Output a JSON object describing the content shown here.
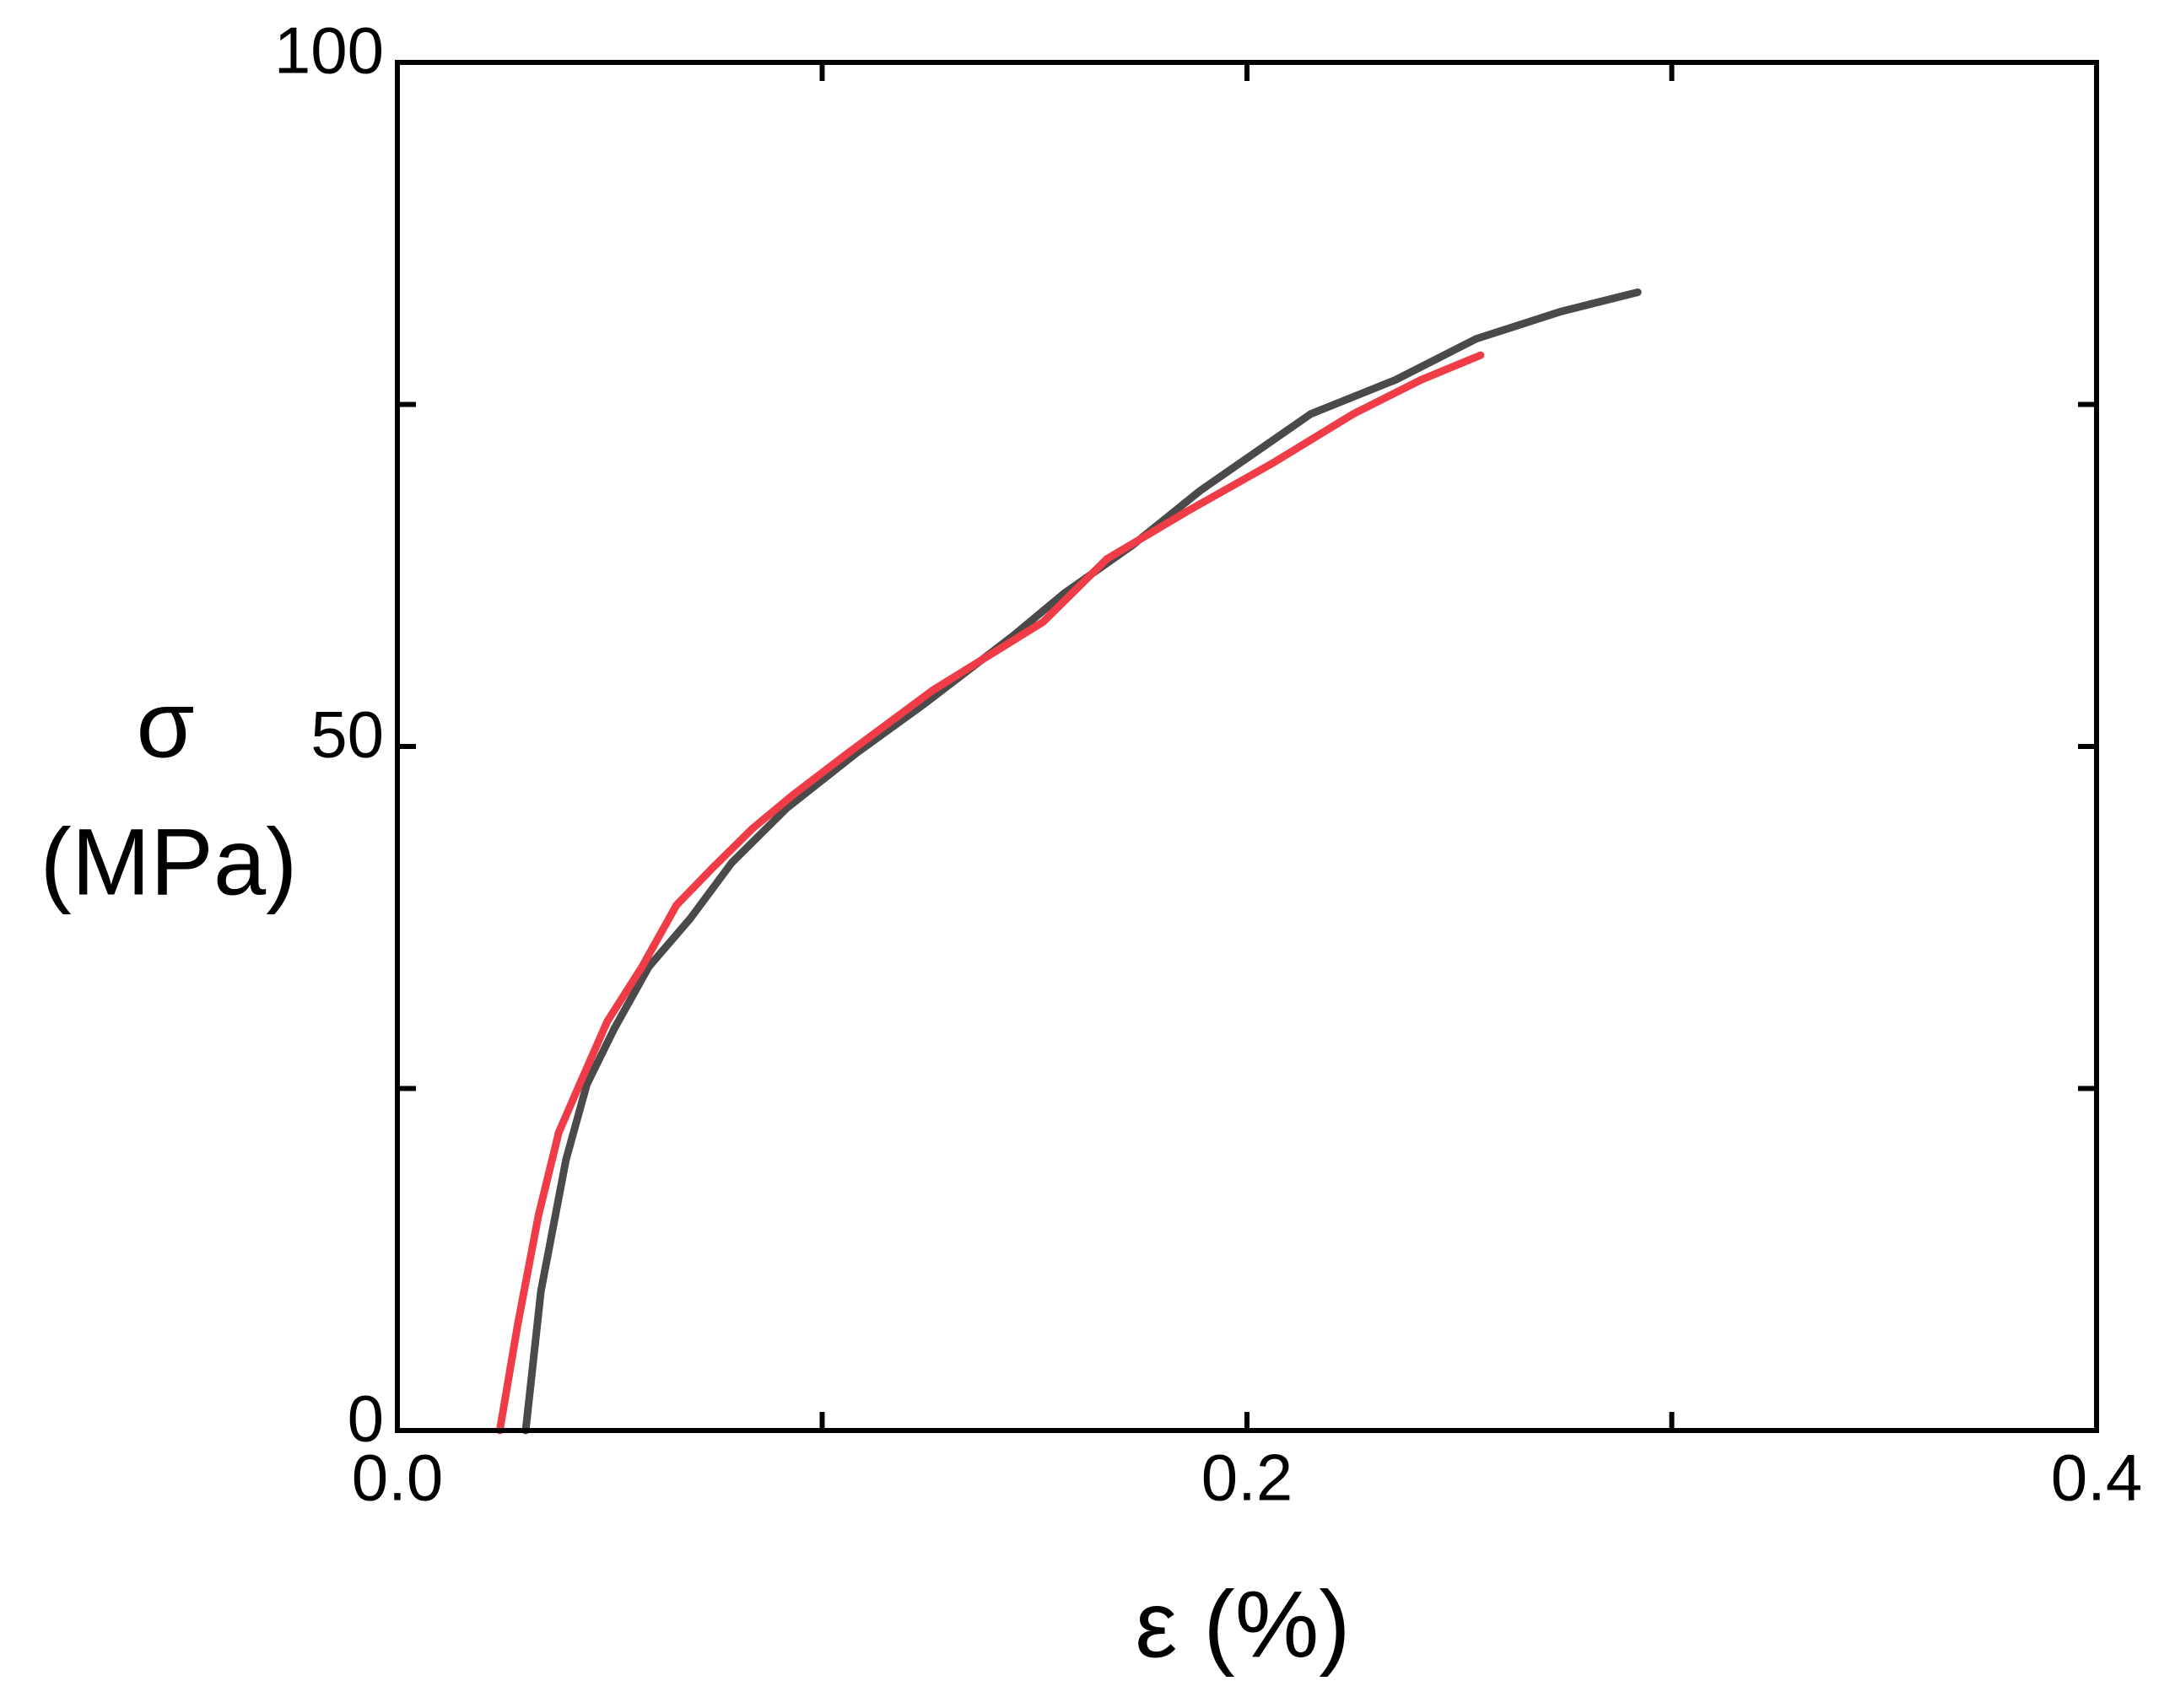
{
  "chart_data": {
    "type": "line",
    "xlabel": "ε (%)",
    "ylabel": [
      "σ",
      "(MPa)"
    ],
    "xlim": [
      0,
      0.4
    ],
    "ylim": [
      0,
      100
    ],
    "xticks": [
      {
        "value": 0,
        "label": "0.0"
      },
      0.2,
      0.4
    ],
    "yticks": [
      0,
      50,
      100
    ],
    "xminorticks": [
      0.1,
      0.3
    ],
    "yminorticks": [
      25,
      75
    ],
    "series": [
      {
        "color": "#4a4a4a",
        "x": [
          0.0302,
          0.0338,
          0.0397,
          0.0446,
          0.0511,
          0.0592,
          0.0689,
          0.0787,
          0.0917,
          0.108,
          0.124,
          0.145,
          0.157,
          0.173,
          0.189,
          0.215,
          0.235,
          0.254,
          0.274,
          0.292
        ],
        "values": [
          0,
          10.2,
          19.8,
          25.3,
          29.4,
          33.9,
          37.4,
          41.5,
          45.5,
          49.5,
          53.1,
          58.1,
          61.2,
          64.7,
          68.7,
          74.3,
          76.8,
          79.8,
          81.8,
          83.2
        ]
      },
      {
        "color": "#f03c46",
        "x": [
          0.0241,
          0.0283,
          0.0332,
          0.038,
          0.0429,
          0.0494,
          0.0576,
          0.0657,
          0.0738,
          0.0836,
          0.0933,
          0.106,
          0.126,
          0.152,
          0.167,
          0.186,
          0.206,
          0.225,
          0.241,
          0.255
        ],
        "values": [
          0,
          7.7,
          15.7,
          21.8,
          25.3,
          29.9,
          33.9,
          38.4,
          41.0,
          44.0,
          46.5,
          49.5,
          54.1,
          59.1,
          63.7,
          67.2,
          70.7,
          74.3,
          76.8,
          78.6
        ]
      }
    ]
  }
}
